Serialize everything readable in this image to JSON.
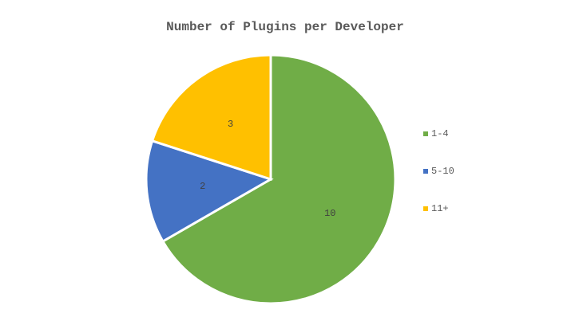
{
  "chart_data": {
    "type": "pie",
    "title": "Number of Plugins per Developer",
    "categories": [
      "1-4",
      "5-10",
      "11+"
    ],
    "values": [
      10,
      2,
      3
    ],
    "colors": [
      "#70ad47",
      "#4472c4",
      "#ffc000"
    ],
    "legend": "right"
  }
}
